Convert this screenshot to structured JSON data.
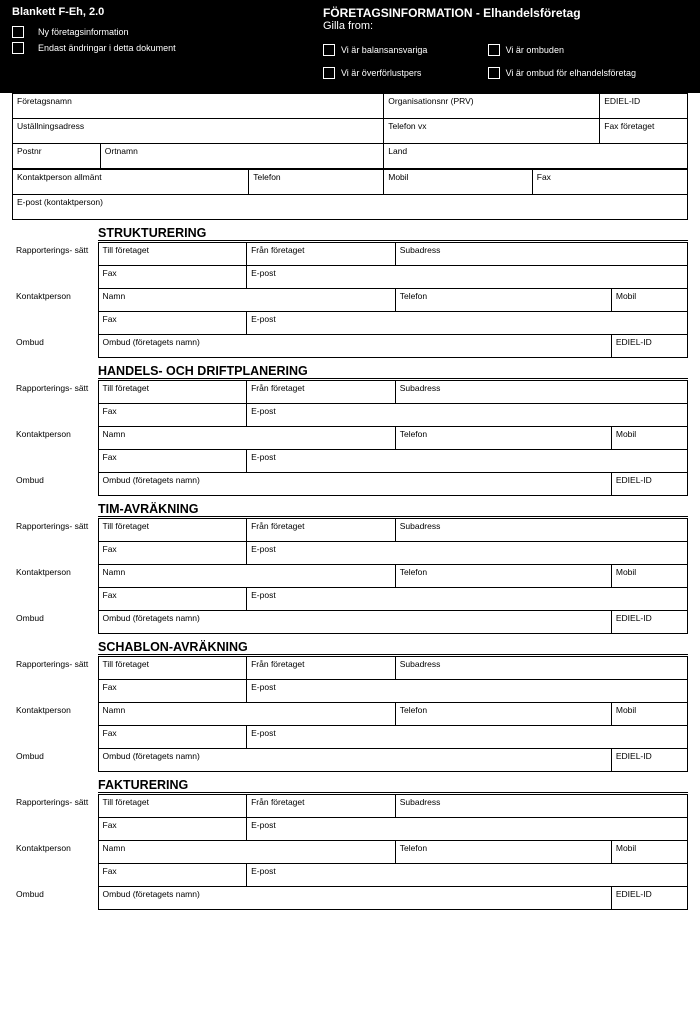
{
  "header": {
    "blankett": "Blankett F-Eh, 2.0",
    "left_checks": [
      "Ny företagsinformation",
      "Endast ändringar i detta dokument"
    ],
    "title": "FÖRETAGSINFORMATION - Elhandelsföretag",
    "subtitle": "Gilla from:",
    "right_checks": [
      "Vi är balansansvariga",
      "Vi är ombuden",
      "Vi är överförlustpers",
      "Vi är ombud för elhandelsföretag"
    ]
  },
  "company": {
    "r1": [
      "Företagsnamn",
      "Organisationsnr (PRV)",
      "EDIEL-ID"
    ],
    "r2": [
      "Uställningsadress",
      "Telefon vx",
      "Fax företaget"
    ],
    "r3": [
      "Postnr",
      "Ortnamn",
      "Land"
    ],
    "r4": [
      "Kontaktperson allmänt",
      "Telefon",
      "Mobil",
      "Fax"
    ],
    "r5": [
      "E-post (kontaktperson)"
    ]
  },
  "sections": [
    {
      "title": "STRUKTURERING"
    },
    {
      "title": "HANDELS- OCH DRIFTPLANERING"
    },
    {
      "title": "TIM-AVRÄKNING"
    },
    {
      "title": "SCHABLON-AVRÄKNING"
    },
    {
      "title": "FAKTURERING"
    }
  ],
  "rowlabels": {
    "rapp": "Rapporterings- sätt",
    "kont": "Kontaktperson",
    "ombud": "Ombud"
  },
  "cells": {
    "till": "Till företaget",
    "fran": "Från företaget",
    "sub": "Subadress",
    "fax": "Fax",
    "epost": "E-post",
    "namn": "Namn",
    "telefon": "Telefon",
    "mobil": "Mobil",
    "ombud_namn": "Ombud (företagets namn)",
    "ediel": "EDIEL-ID"
  }
}
